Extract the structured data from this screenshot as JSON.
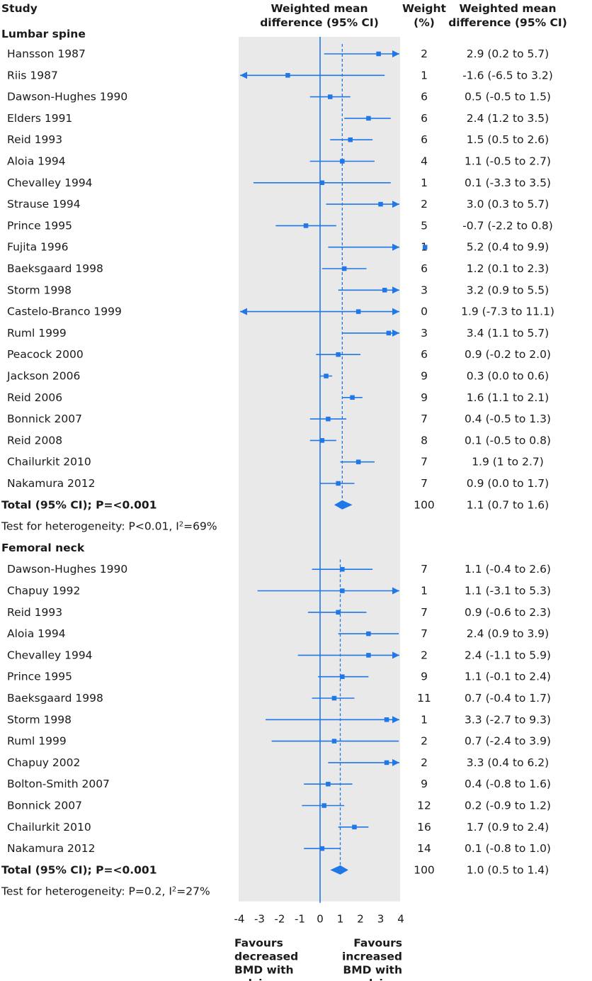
{
  "chart_data": {
    "type": "forest",
    "headers": {
      "study": "Study",
      "effect": [
        "Weighted mean",
        "difference (95% CI)"
      ],
      "weight": [
        "Weight",
        "(%)"
      ],
      "ci": [
        "Weighted mean",
        "difference (95% CI)"
      ]
    },
    "xlim": [
      -4,
      4
    ],
    "xticks": [
      -4,
      -3,
      -2,
      -1,
      0,
      1,
      2,
      3,
      4
    ],
    "xtick_labels": [
      "-4",
      "-3",
      "-2",
      "-1",
      "0",
      "1",
      "2",
      "3",
      "4"
    ],
    "favours_left": [
      "Favours",
      "decreased",
      "BMD with",
      "calcium"
    ],
    "favours_right": [
      "Favours",
      "increased",
      "BMD with",
      "calcium"
    ],
    "sections": [
      {
        "title": "Lumbar spine",
        "studies": [
          {
            "name": "Hansson 1987",
            "est": 2.9,
            "lo": 0.2,
            "hi": 5.7,
            "weight": "2",
            "ci": "2.9 (0.2 to 5.7)"
          },
          {
            "name": "Riis 1987",
            "est": -1.6,
            "lo": -6.5,
            "hi": 3.2,
            "weight": "1",
            "ci": "-1.6 (-6.5 to 3.2)"
          },
          {
            "name": "Dawson-Hughes 1990",
            "est": 0.5,
            "lo": -0.5,
            "hi": 1.5,
            "weight": "6",
            "ci": "0.5 (-0.5 to 1.5)"
          },
          {
            "name": "Elders 1991",
            "est": 2.4,
            "lo": 1.2,
            "hi": 3.5,
            "weight": "6",
            "ci": "2.4 (1.2 to 3.5)"
          },
          {
            "name": "Reid 1993",
            "est": 1.5,
            "lo": 0.5,
            "hi": 2.6,
            "weight": "6",
            "ci": "1.5 (0.5 to 2.6)"
          },
          {
            "name": "Aloia 1994",
            "est": 1.1,
            "lo": -0.5,
            "hi": 2.7,
            "weight": "4",
            "ci": "1.1 (-0.5 to 2.7)"
          },
          {
            "name": "Chevalley 1994",
            "est": 0.1,
            "lo": -3.3,
            "hi": 3.5,
            "weight": "1",
            "ci": "0.1 (-3.3 to 3.5)"
          },
          {
            "name": "Strause 1994",
            "est": 3.0,
            "lo": 0.3,
            "hi": 5.7,
            "weight": "2",
            "ci": "3.0 (0.3 to 5.7)"
          },
          {
            "name": "Prince 1995",
            "est": -0.7,
            "lo": -2.2,
            "hi": 0.8,
            "weight": "5",
            "ci": "-0.7 (-2.2 to 0.8)"
          },
          {
            "name": "Fujita 1996",
            "est": 5.2,
            "lo": 0.4,
            "hi": 9.9,
            "weight": "1",
            "ci": "5.2 (0.4 to 9.9)"
          },
          {
            "name": "Baeksgaard 1998",
            "est": 1.2,
            "lo": 0.1,
            "hi": 2.3,
            "weight": "6",
            "ci": "1.2 (0.1 to 2.3)"
          },
          {
            "name": "Storm 1998",
            "est": 3.2,
            "lo": 0.9,
            "hi": 5.5,
            "weight": "3",
            "ci": "3.2 (0.9 to 5.5)"
          },
          {
            "name": "Castelo-Branco 1999",
            "est": 1.9,
            "lo": -7.3,
            "hi": 11.1,
            "weight": "0",
            "ci": "1.9 (-7.3 to 11.1)"
          },
          {
            "name": "Ruml 1999",
            "est": 3.4,
            "lo": 1.1,
            "hi": 5.7,
            "weight": "3",
            "ci": "3.4 (1.1 to 5.7)"
          },
          {
            "name": "Peacock 2000",
            "est": 0.9,
            "lo": -0.2,
            "hi": 2.0,
            "weight": "6",
            "ci": "0.9 (-0.2 to 2.0)"
          },
          {
            "name": "Jackson 2006",
            "est": 0.3,
            "lo": 0.0,
            "hi": 0.6,
            "weight": "9",
            "ci": "0.3 (0.0 to 0.6)"
          },
          {
            "name": "Reid 2006",
            "est": 1.6,
            "lo": 1.1,
            "hi": 2.1,
            "weight": "9",
            "ci": "1.6 (1.1 to 2.1)"
          },
          {
            "name": "Bonnick 2007",
            "est": 0.4,
            "lo": -0.5,
            "hi": 1.3,
            "weight": "7",
            "ci": "0.4 (-0.5 to 1.3)"
          },
          {
            "name": "Reid 2008",
            "est": 0.1,
            "lo": -0.5,
            "hi": 0.8,
            "weight": "8",
            "ci": "0.1 (-0.5 to 0.8)"
          },
          {
            "name": "Chailurkit 2010",
            "est": 1.9,
            "lo": 1.0,
            "hi": 2.7,
            "weight": "7",
            "ci": "1.9 (1 to 2.7)"
          },
          {
            "name": "Nakamura 2012",
            "est": 0.9,
            "lo": 0.0,
            "hi": 1.7,
            "weight": "7",
            "ci": "0.9 (0.0 to 1.7)"
          }
        ],
        "total": {
          "label": "Total (95% CI); P=<0.001",
          "est": 1.1,
          "lo": 0.7,
          "hi": 1.6,
          "weight": "100",
          "ci": "1.1 (0.7 to 1.6)"
        },
        "heterogeneity": {
          "prefix": "Test for heterogeneity: P<0.01, I",
          "sup": "2",
          "suffix": "=69%"
        }
      },
      {
        "title": "Femoral neck",
        "studies": [
          {
            "name": "Dawson-Hughes 1990",
            "est": 1.1,
            "lo": -0.4,
            "hi": 2.6,
            "weight": "7",
            "ci": "1.1 (-0.4 to 2.6)"
          },
          {
            "name": "Chapuy 1992",
            "est": 1.1,
            "lo": -3.1,
            "hi": 5.3,
            "weight": "1",
            "ci": "1.1 (-3.1 to 5.3)"
          },
          {
            "name": "Reid 1993",
            "est": 0.9,
            "lo": -0.6,
            "hi": 2.3,
            "weight": "7",
            "ci": "0.9 (-0.6 to 2.3)"
          },
          {
            "name": "Aloia 1994",
            "est": 2.4,
            "lo": 0.9,
            "hi": 3.9,
            "weight": "7",
            "ci": "2.4 (0.9 to 3.9)"
          },
          {
            "name": "Chevalley 1994",
            "est": 2.4,
            "lo": -1.1,
            "hi": 5.9,
            "weight": "2",
            "ci": "2.4 (-1.1 to 5.9)"
          },
          {
            "name": "Prince 1995",
            "est": 1.1,
            "lo": -0.1,
            "hi": 2.4,
            "weight": "9",
            "ci": "1.1 (-0.1 to 2.4)"
          },
          {
            "name": "Baeksgaard 1998",
            "est": 0.7,
            "lo": -0.4,
            "hi": 1.7,
            "weight": "11",
            "ci": "0.7 (-0.4 to 1.7)"
          },
          {
            "name": "Storm 1998",
            "est": 3.3,
            "lo": -2.7,
            "hi": 9.3,
            "weight": "1",
            "ci": "3.3 (-2.7 to 9.3)"
          },
          {
            "name": "Ruml 1999",
            "est": 0.7,
            "lo": -2.4,
            "hi": 3.9,
            "weight": "2",
            "ci": "0.7 (-2.4 to 3.9)"
          },
          {
            "name": "Chapuy 2002",
            "est": 3.3,
            "lo": 0.4,
            "hi": 6.2,
            "weight": "2",
            "ci": "3.3 (0.4 to 6.2)"
          },
          {
            "name": "Bolton-Smith 2007",
            "est": 0.4,
            "lo": -0.8,
            "hi": 1.6,
            "weight": "9",
            "ci": "0.4 (-0.8 to 1.6)"
          },
          {
            "name": "Bonnick 2007",
            "est": 0.2,
            "lo": -0.9,
            "hi": 1.2,
            "weight": "12",
            "ci": "0.2 (-0.9 to 1.2)"
          },
          {
            "name": "Chailurkit 2010",
            "est": 1.7,
            "lo": 0.9,
            "hi": 2.4,
            "weight": "16",
            "ci": "1.7 (0.9 to 2.4)"
          },
          {
            "name": "Nakamura 2012",
            "est": 0.1,
            "lo": -0.8,
            "hi": 1.0,
            "weight": "14",
            "ci": "0.1 (-0.8 to 1.0)"
          }
        ],
        "total": {
          "label": "Total (95% CI); P=<0.001",
          "est": 1.0,
          "lo": 0.5,
          "hi": 1.4,
          "weight": "100",
          "ci": "1.0 (0.5 to 1.4)"
        },
        "heterogeneity": {
          "prefix": "Test for heterogeneity: P=0.2, I",
          "sup": "2",
          "suffix": "=27%"
        }
      }
    ]
  },
  "colors": {
    "accent": "#1f77e8",
    "panel": "#e9e9e9",
    "text": "#1a1a1a"
  }
}
